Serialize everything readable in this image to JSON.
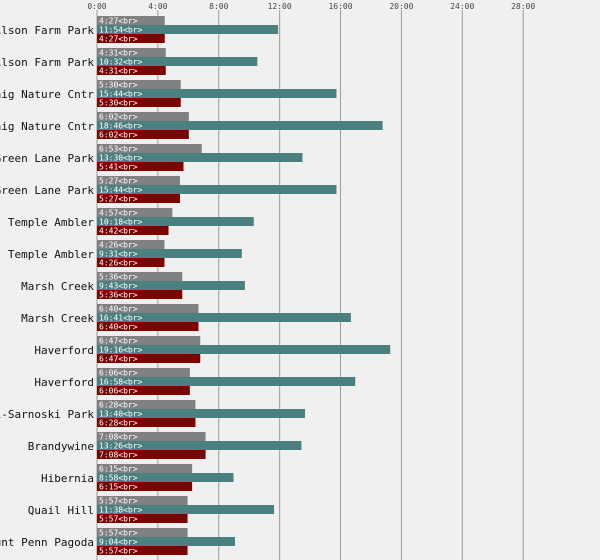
{
  "chart_data": {
    "type": "bar",
    "orientation": "horizontal",
    "x_ticks": [
      "0:00",
      "4:00",
      "8:00",
      "12:00",
      "16:00",
      "20:00",
      "24:00",
      "28:00"
    ],
    "xlim": [
      0,
      30
    ],
    "x_units": "hours",
    "colors": [
      "#808080",
      "#4a8080",
      "#800000"
    ],
    "categories": [
      "Wilson Farm Park",
      "Wilson Farm Park",
      "Kaig Nature Cntr",
      "Kaig Nature Cntr",
      "Green Lane Park",
      "Green Lane Park",
      "Temple Ambler",
      "Temple Ambler",
      "Marsh Creek",
      "Marsh Creek",
      "Haverford",
      "Haverford",
      "li-Sarnoski Park",
      "Brandywine",
      "Hibernia",
      "Quail Hill",
      "ount Penn Pagoda"
    ],
    "series": [
      {
        "values": [
          4.45,
          4.517,
          5.5,
          6.033,
          6.883,
          5.45,
          4.95,
          4.433,
          5.6,
          6.667,
          6.783,
          6.1,
          6.467,
          7.133,
          6.25,
          5.95,
          5.95
        ],
        "labels": [
          "4:27<br>",
          "4:31<br>",
          "5:30<br>",
          "6:02<br>",
          "6:53<br>",
          "5:27<br>",
          "4:57<br>",
          "4:26<br>",
          "5:36<br>",
          "6:40<br>",
          "6:47<br>",
          "6:06<br>",
          "6:28<br>",
          "7:08<br>",
          "6:15<br>",
          "5:57<br>",
          "5:57<br>"
        ]
      },
      {
        "values": [
          11.9,
          10.533,
          15.733,
          18.767,
          13.5,
          15.733,
          10.3,
          9.517,
          9.717,
          16.683,
          19.267,
          16.967,
          13.667,
          13.433,
          8.967,
          11.633,
          9.067
        ],
        "labels": [
          "11:54<br>",
          "10:32<br>",
          "15:44<br>",
          "18:46<br>",
          "13:30<br>",
          "15:44<br>",
          "10:18<br>",
          "9:31<br>",
          "9:43<br>",
          "16:41<br>",
          "19:16<br>",
          "16:58<br>",
          "13:40<br>",
          "13:26<br>",
          "8:58<br>",
          "11:38<br>",
          "9:04<br>"
        ]
      },
      {
        "values": [
          4.45,
          4.517,
          5.5,
          6.033,
          5.683,
          5.45,
          4.7,
          4.433,
          5.6,
          6.667,
          6.783,
          6.1,
          6.467,
          7.133,
          6.25,
          5.95,
          5.95
        ],
        "labels": [
          "4:27<br>",
          "4:31<br>",
          "5:30<br>",
          "6:02<br>",
          "5:41<br>",
          "5:27<br>",
          "4:42<br>",
          "4:26<br>",
          "5:36<br>",
          "6:40<br>",
          "6:47<br>",
          "6:06<br>",
          "6:28<br>",
          "7:08<br>",
          "6:15<br>",
          "5:57<br>",
          "5:57<br>"
        ]
      }
    ]
  }
}
